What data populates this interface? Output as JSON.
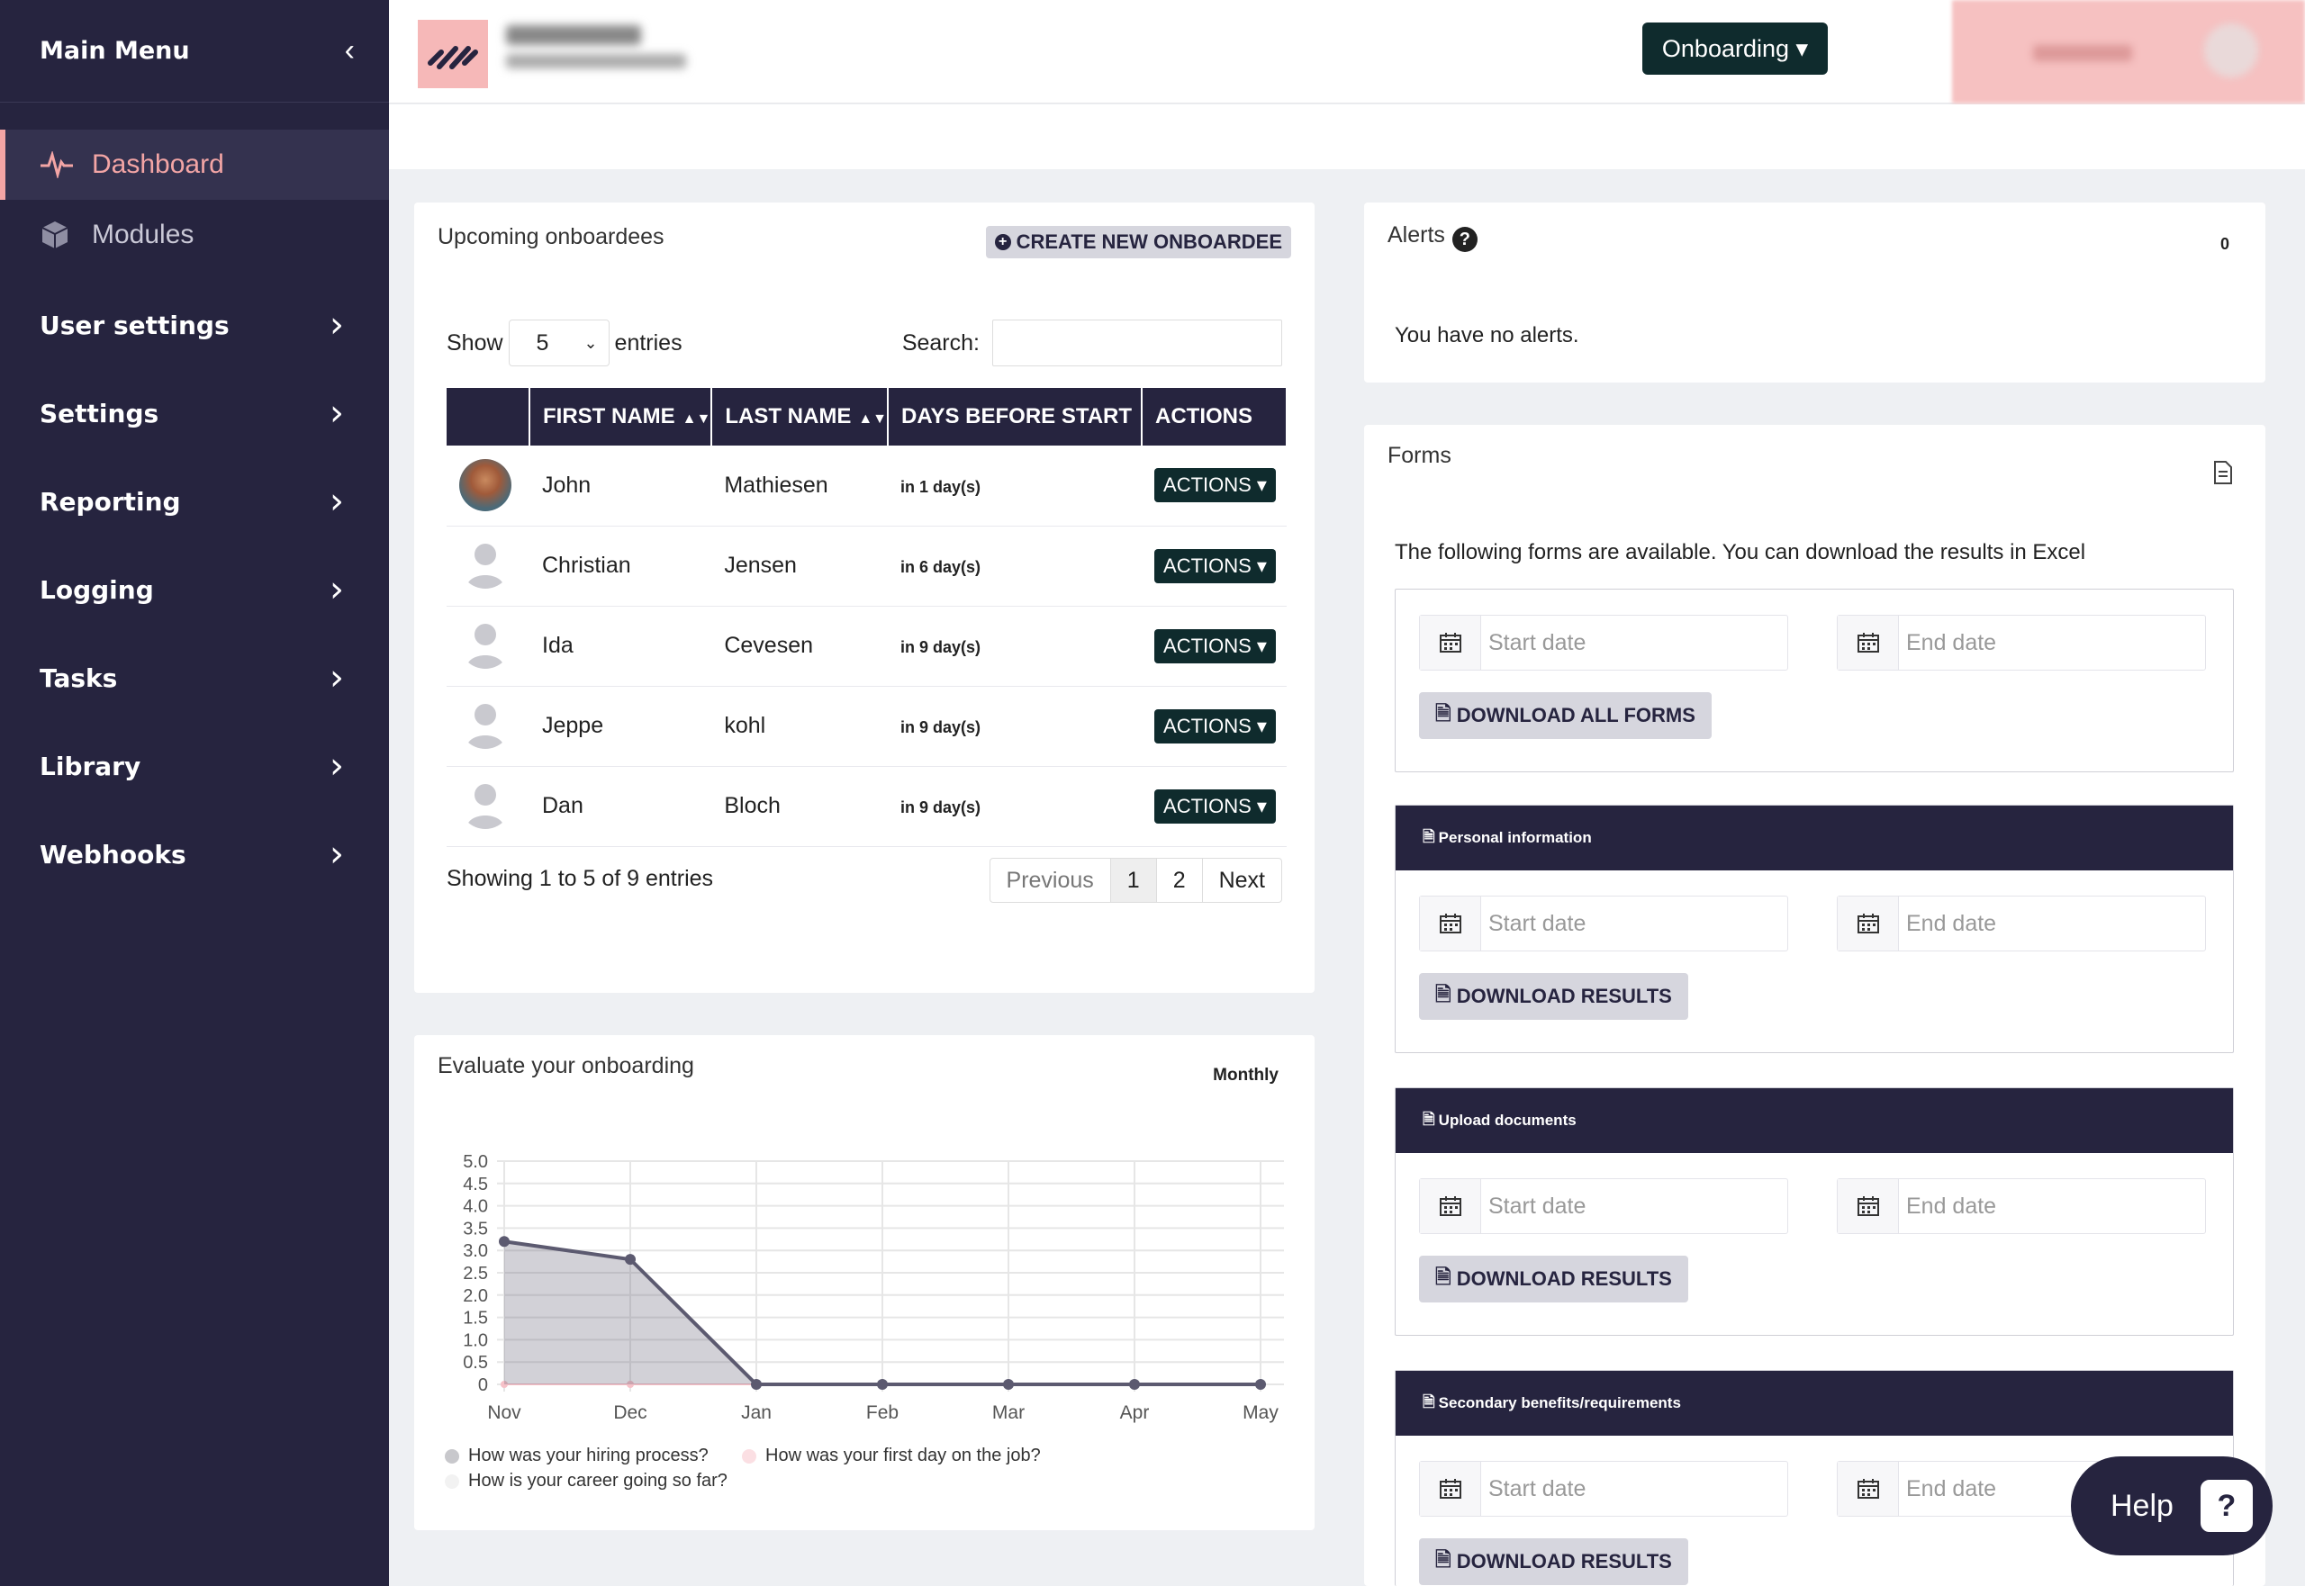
{
  "sidebar": {
    "title": "Main Menu",
    "items": [
      {
        "label": "Dashboard"
      },
      {
        "label": "Modules"
      }
    ],
    "groups": [
      {
        "label": "User settings"
      },
      {
        "label": "Settings"
      },
      {
        "label": "Reporting"
      },
      {
        "label": "Logging"
      },
      {
        "label": "Tasks"
      },
      {
        "label": "Library"
      },
      {
        "label": "Webhooks"
      }
    ]
  },
  "topbar": {
    "menu_label": "Onboarding ▾"
  },
  "upcoming": {
    "title": "Upcoming onboardees",
    "create_label": "CREATE NEW ONBOARDEE",
    "show_label": "Show",
    "entries_label": "entries",
    "page_size": "5",
    "search_label": "Search:",
    "columns": [
      "FIRST NAME",
      "LAST NAME",
      "DAYS BEFORE START",
      "ACTIONS"
    ],
    "rows": [
      {
        "first": "John",
        "last": "Mathiesen",
        "days": "in 1 day(s)",
        "action": "ACTIONS ▾"
      },
      {
        "first": "Christian",
        "last": "Jensen",
        "days": "in 6 day(s)",
        "action": "ACTIONS ▾"
      },
      {
        "first": "Ida",
        "last": "Cevesen",
        "days": "in 9 day(s)",
        "action": "ACTIONS ▾"
      },
      {
        "first": "Jeppe",
        "last": "kohl",
        "days": "in 9 day(s)",
        "action": "ACTIONS ▾"
      },
      {
        "first": "Dan",
        "last": "Bloch",
        "days": "in 9 day(s)",
        "action": "ACTIONS ▾"
      }
    ],
    "info": "Showing 1 to 5 of 9 entries",
    "pager": {
      "prev": "Previous",
      "p1": "1",
      "p2": "2",
      "next": "Next"
    }
  },
  "evaluate": {
    "title": "Evaluate your onboarding",
    "period": "Monthly"
  },
  "chart_data": {
    "type": "area",
    "x": [
      "Nov",
      "Dec",
      "Jan",
      "Feb",
      "Mar",
      "Apr",
      "May"
    ],
    "yticks": [
      "5.0",
      "4.5",
      "4.0",
      "3.5",
      "3.0",
      "2.5",
      "2.0",
      "1.5",
      "1.0",
      "0.5",
      "0"
    ],
    "ylim": [
      0,
      5
    ],
    "grid": true,
    "series": [
      {
        "name": "How was your hiring process?",
        "values": [
          3.2,
          2.8,
          0,
          0,
          0,
          0,
          0
        ],
        "color": "#5c5a70"
      },
      {
        "name": "How was your first day on the job?",
        "values": [
          0,
          0,
          0,
          0,
          0,
          0,
          0
        ],
        "color": "#f6c1c8"
      },
      {
        "name": "How is your career going so far?",
        "values": [
          0,
          0,
          0,
          0,
          0,
          0,
          0
        ],
        "color": "#eeeeee"
      }
    ]
  },
  "alerts": {
    "title": "Alerts",
    "count": "0",
    "message": "You have no alerts."
  },
  "forms": {
    "title": "Forms",
    "intro": "The following forms are available. You can download the results in Excel",
    "start_placeholder": "Start date",
    "end_placeholder": "End date",
    "download_all": "DOWNLOAD ALL FORMS",
    "download_results": "DOWNLOAD RESULTS",
    "sections": [
      "Personal information",
      "Upload documents",
      "Secondary benefits/requirements"
    ]
  },
  "help": {
    "label": "Help"
  }
}
